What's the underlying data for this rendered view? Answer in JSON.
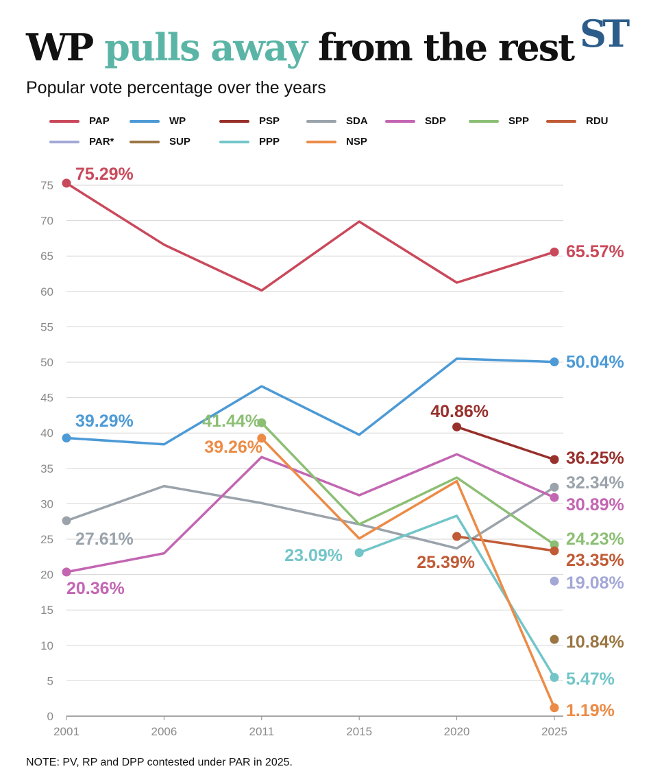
{
  "header": {
    "title_lead": "WP",
    "title_accent": "pulls away",
    "title_tail": "from the rest",
    "subtitle": "Popular vote percentage over the years",
    "logo": "ST"
  },
  "note": "NOTE: PV, RP and DPP contested under PAR in 2025.",
  "chart_data": {
    "type": "line",
    "title": "WP pulls away from the rest",
    "subtitle": "Popular vote percentage over the years",
    "xlabel": "",
    "ylabel": "",
    "x": [
      "2001",
      "2006",
      "2011",
      "2015",
      "2020",
      "2025"
    ],
    "ylim": [
      0,
      75
    ],
    "yticks": [
      0,
      5,
      10,
      15,
      20,
      25,
      30,
      35,
      40,
      45,
      50,
      55,
      60,
      65,
      70,
      75
    ],
    "grid": true,
    "legend_position": "top",
    "series": [
      {
        "name": "PAP",
        "color": "#c9495b",
        "values": [
          75.29,
          66.6,
          60.14,
          69.86,
          61.24,
          65.57
        ],
        "labels": [
          {
            "index": 0,
            "text": "75.29%"
          },
          {
            "index": 5,
            "text": "65.57%"
          }
        ]
      },
      {
        "name": "WP",
        "color": "#4c9ad6",
        "values": [
          39.29,
          38.4,
          46.6,
          39.75,
          50.49,
          50.04
        ],
        "labels": [
          {
            "index": 0,
            "text": "39.29%"
          },
          {
            "index": 5,
            "text": "50.04%"
          }
        ]
      },
      {
        "name": "PSP",
        "color": "#98302c",
        "values": [
          null,
          null,
          null,
          null,
          40.86,
          36.25
        ],
        "labels": [
          {
            "index": 4,
            "text": "40.86%"
          },
          {
            "index": 5,
            "text": "36.25%"
          }
        ]
      },
      {
        "name": "SDA",
        "color": "#9aa3ab",
        "values": [
          27.61,
          32.5,
          30.1,
          27.1,
          23.7,
          32.34
        ],
        "labels": [
          {
            "index": 0,
            "text": "27.61%"
          },
          {
            "index": 5,
            "text": "32.34%"
          }
        ]
      },
      {
        "name": "SDP",
        "color": "#c366b2",
        "values": [
          20.36,
          23.0,
          36.6,
          31.2,
          37.0,
          30.89
        ],
        "labels": [
          {
            "index": 0,
            "text": "20.36%"
          },
          {
            "index": 5,
            "text": "30.89%"
          }
        ]
      },
      {
        "name": "SPP",
        "color": "#8cbf74",
        "values": [
          null,
          null,
          41.44,
          27.1,
          33.7,
          24.23
        ],
        "labels": [
          {
            "index": 2,
            "text": "41.44%"
          },
          {
            "index": 5,
            "text": "24.23%"
          }
        ]
      },
      {
        "name": "RDU",
        "color": "#c05b36",
        "values": [
          null,
          null,
          null,
          null,
          25.39,
          23.35
        ],
        "labels": [
          {
            "index": 4,
            "text": "25.39%"
          },
          {
            "index": 5,
            "text": "23.35%"
          }
        ]
      },
      {
        "name": "PAR*",
        "color": "#a4a8d7",
        "values": [
          null,
          null,
          null,
          null,
          null,
          19.08
        ],
        "labels": [
          {
            "index": 5,
            "text": "19.08%"
          }
        ]
      },
      {
        "name": "SUP",
        "color": "#9a7643",
        "values": [
          null,
          null,
          null,
          null,
          null,
          10.84
        ],
        "labels": [
          {
            "index": 5,
            "text": "10.84%"
          }
        ]
      },
      {
        "name": "PPP",
        "color": "#72c5c8",
        "values": [
          null,
          null,
          null,
          23.09,
          28.3,
          5.47
        ],
        "labels": [
          {
            "index": 3,
            "text": "23.09%"
          },
          {
            "index": 5,
            "text": "5.47%"
          }
        ]
      },
      {
        "name": "NSP",
        "color": "#ec8b46",
        "values": [
          null,
          null,
          39.26,
          25.1,
          33.2,
          1.19
        ],
        "labels": [
          {
            "index": 2,
            "text": "39.26%"
          },
          {
            "index": 5,
            "text": "1.19%"
          }
        ]
      }
    ]
  }
}
